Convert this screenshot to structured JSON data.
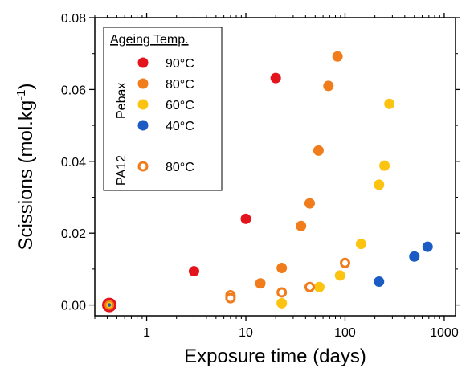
{
  "chart_data": {
    "type": "scatter",
    "x_scale": "log",
    "xlabel": "Exposure time (days)",
    "ylabel": "Scissions (mol.kg",
    "ylabel_sup": "-1",
    "ylabel_suffix": ")",
    "xlim": [
      0.3,
      1300
    ],
    "ylim": [
      -0.003,
      0.08
    ],
    "x_ticks": [
      {
        "value": 1,
        "label": "1"
      },
      {
        "value": 10,
        "label": "10"
      },
      {
        "value": 100,
        "label": "100"
      },
      {
        "value": 1000,
        "label": "1000"
      }
    ],
    "y_ticks": [
      {
        "value": 0.0,
        "label": "0.00"
      },
      {
        "value": 0.02,
        "label": "0.02"
      },
      {
        "value": 0.04,
        "label": "0.04"
      },
      {
        "value": 0.06,
        "label": "0.06"
      },
      {
        "value": 0.08,
        "label": "0.08"
      }
    ],
    "legend": {
      "title": "Ageing Temp.",
      "group_labels": [
        "Pebax",
        "PA12"
      ],
      "placement": "top-left"
    },
    "series": [
      {
        "name": "90°C",
        "group": "Pebax",
        "color": "#e3141b",
        "marker": "filled",
        "points": [
          [
            0.42,
            0.0
          ],
          [
            3,
            0.0094
          ],
          [
            10,
            0.024
          ],
          [
            20,
            0.0632
          ]
        ]
      },
      {
        "name": "80°C",
        "group": "Pebax",
        "color": "#f07c1c",
        "marker": "filled",
        "points": [
          [
            14,
            0.006
          ],
          [
            23,
            0.0103
          ],
          [
            36,
            0.022
          ],
          [
            44,
            0.0283
          ],
          [
            54,
            0.043
          ],
          [
            68,
            0.061
          ],
          [
            84,
            0.0692
          ]
        ]
      },
      {
        "name": "60°C",
        "group": "Pebax",
        "color": "#fcc410",
        "marker": "filled",
        "points": [
          [
            23,
            0.0005
          ],
          [
            55,
            0.005
          ],
          [
            89,
            0.0082
          ],
          [
            145,
            0.017
          ],
          [
            220,
            0.0335
          ],
          [
            250,
            0.0388
          ],
          [
            280,
            0.056
          ]
        ]
      },
      {
        "name": "40°C",
        "group": "Pebax",
        "color": "#1a5bc4",
        "marker": "filled",
        "points": [
          [
            220,
            0.0065
          ],
          [
            500,
            0.0135
          ],
          [
            680,
            0.0162
          ]
        ]
      },
      {
        "name": "80°C",
        "group": "PA12",
        "color": "#f07c1c",
        "marker": "open",
        "points": [
          [
            7,
            0.0027
          ],
          [
            7,
            0.0019
          ],
          [
            23,
            0.0035
          ],
          [
            44,
            0.005
          ],
          [
            100,
            0.0117
          ]
        ]
      }
    ],
    "grid": false
  }
}
